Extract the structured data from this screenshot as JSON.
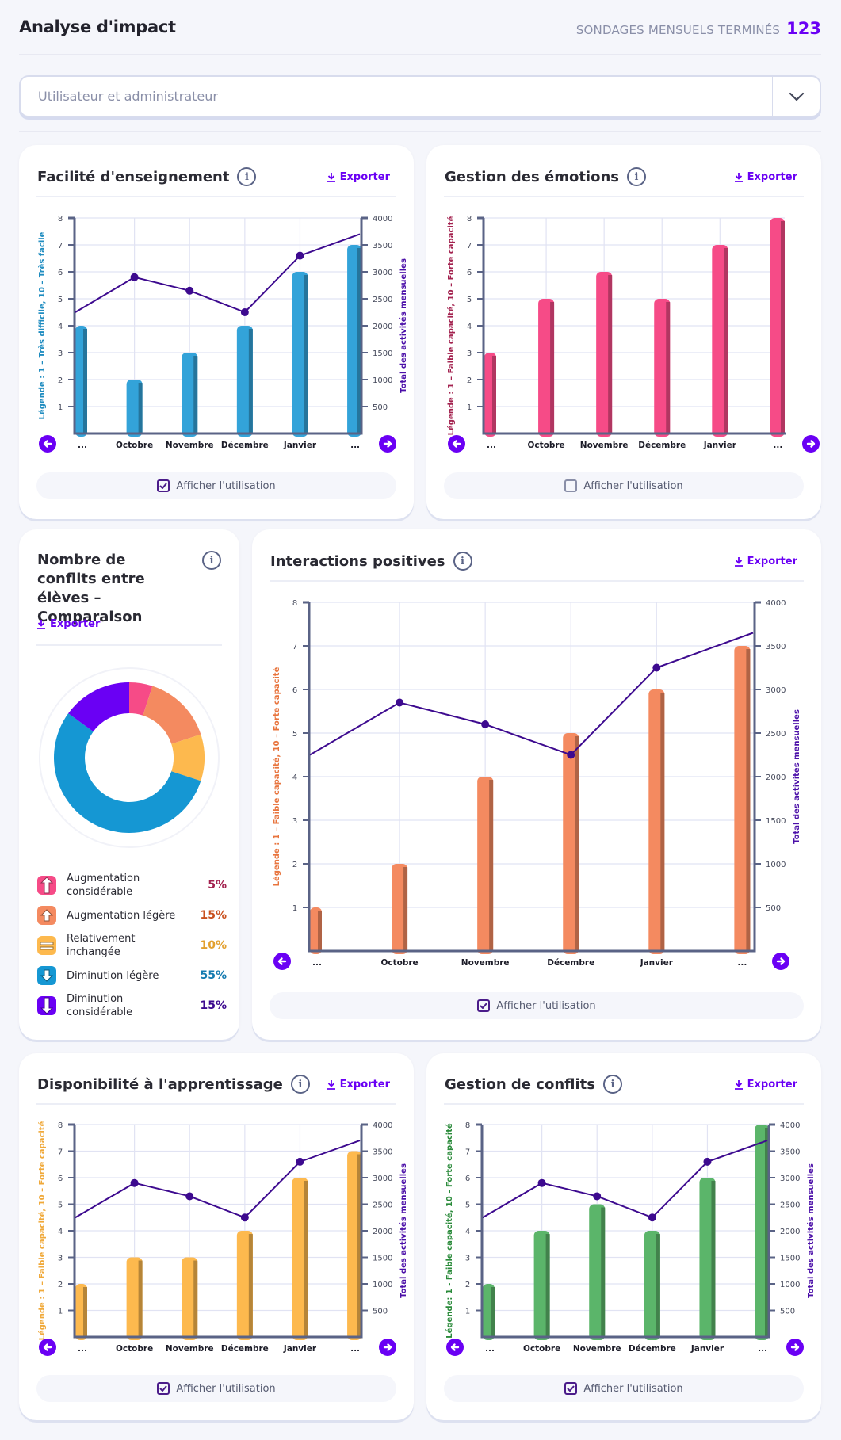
{
  "header": {
    "title": "Analyse d'impact",
    "stat_label": "SONDAGES MENSUELS TERMINÉS",
    "stat_value": "123"
  },
  "filter": {
    "value": "Utilisateur et administrateur"
  },
  "common": {
    "export_label": "Exporter",
    "usage_label": "Afficher l'utilisation",
    "prev_icon": "arrow-left-icon",
    "next_icon": "arrow-right-icon",
    "info_icon": "info-icon"
  },
  "colors": {
    "accent": "#6a00f4",
    "line": "#3d0a8f",
    "teaching": "#33a3d9",
    "emotions": "#f64b87",
    "interactions": "#f48a60",
    "readiness": "#fdb94e",
    "conflicts": "#5bb56a"
  },
  "chart_data": [
    {
      "id": "teaching",
      "type": "bar",
      "title": "Facilité d'enseignement",
      "categories": [
        "...",
        "Octobre",
        "Novembre",
        "Décembre",
        "Janvier",
        "..."
      ],
      "series": [
        {
          "name": "Score",
          "values": [
            4,
            2,
            3,
            4,
            6,
            7
          ],
          "color": "#33a3d9"
        },
        {
          "name": "Total des activités mensuelles",
          "type": "line",
          "axis": "right",
          "values": [
            2250,
            2900,
            2650,
            2250,
            3300,
            3700
          ],
          "color": "#3d0a8f"
        }
      ],
      "ylabel": "Légende : 1 – Très difficile, 10 – Très facile",
      "ylabel_color": "#1f8cc0",
      "y2label": "Total des activités mensuelles",
      "ylim": [
        0,
        8
      ],
      "yticks": [
        1,
        2,
        3,
        4,
        5,
        6,
        7,
        8
      ],
      "y2lim": [
        0,
        4000
      ],
      "y2ticks": [
        500,
        1000,
        1500,
        2000,
        2500,
        3000,
        3500,
        4000
      ],
      "grid": true,
      "show_usage": true
    },
    {
      "id": "emotions",
      "type": "bar",
      "title": "Gestion des émotions",
      "categories": [
        "...",
        "Octobre",
        "Novembre",
        "Décembre",
        "Janvier",
        "..."
      ],
      "series": [
        {
          "name": "Score",
          "values": [
            3,
            5,
            6,
            5,
            7,
            8
          ],
          "color": "#f64b87"
        }
      ],
      "ylabel": "Légende : 1 – Faible capacité, 10 – Forte capacité",
      "ylabel_color": "#a3224f",
      "ylim": [
        0,
        8
      ],
      "yticks": [
        1,
        2,
        3,
        4,
        5,
        6,
        7,
        8
      ],
      "grid": true,
      "show_usage": false
    },
    {
      "id": "conflicts-comparison",
      "type": "pie",
      "title": "Nombre de conflits entre élèves – Comparaison",
      "donut": true,
      "slices": [
        {
          "label": "Augmentation considérable",
          "value": 5,
          "display": "5%",
          "color": "#f64b87",
          "text_color": "#a3224f",
          "icon": "arrow-up-big-icon"
        },
        {
          "label": "Augmentation légère",
          "value": 15,
          "display": "15%",
          "color": "#f48a60",
          "text_color": "#c9501e",
          "icon": "arrow-up-small-icon"
        },
        {
          "label": "Relativement inchangée",
          "value": 10,
          "display": "10%",
          "color": "#fdb94e",
          "text_color": "#e2a02f",
          "icon": "equal-icon"
        },
        {
          "label": "Diminution légère",
          "value": 55,
          "display": "55%",
          "color": "#1597d3",
          "text_color": "#157bb0",
          "icon": "arrow-down-small-icon"
        },
        {
          "label": "Diminution considérable",
          "value": 15,
          "display": "15%",
          "color": "#6a00f4",
          "text_color": "#3d0a8f",
          "icon": "arrow-down-big-icon"
        }
      ]
    },
    {
      "id": "interactions",
      "type": "bar",
      "title": "Interactions positives",
      "categories": [
        "...",
        "Octobre",
        "Novembre",
        "Décembre",
        "Janvier",
        "..."
      ],
      "series": [
        {
          "name": "Score",
          "values": [
            1,
            2,
            4,
            5,
            6,
            7
          ],
          "color": "#f48a60"
        },
        {
          "name": "Total des activités mensuelles",
          "type": "line",
          "axis": "right",
          "values": [
            2250,
            2850,
            2600,
            2250,
            3250,
            3650
          ],
          "color": "#3d0a8f"
        }
      ],
      "ylabel": "Légende : 1 – Faible capacité, 10 – Forte capacité",
      "ylabel_color": "#e8743d",
      "y2label": "Total des activités mensuelles",
      "ylim": [
        0,
        8
      ],
      "yticks": [
        1,
        2,
        3,
        4,
        5,
        6,
        7,
        8
      ],
      "y2lim": [
        0,
        4000
      ],
      "y2ticks": [
        500,
        1000,
        1500,
        2000,
        2500,
        3000,
        3500,
        4000
      ],
      "grid": true,
      "show_usage": true
    },
    {
      "id": "readiness",
      "type": "bar",
      "title": "Disponibilité à l'apprentissage",
      "categories": [
        "...",
        "Octobre",
        "Novembre",
        "Décembre",
        "Janvier",
        "..."
      ],
      "series": [
        {
          "name": "Score",
          "values": [
            2,
            3,
            3,
            4,
            6,
            7
          ],
          "color": "#fdb94e"
        },
        {
          "name": "Total des activités mensuelles",
          "type": "line",
          "axis": "right",
          "values": [
            2250,
            2900,
            2650,
            2250,
            3300,
            3700
          ],
          "color": "#3d0a8f"
        }
      ],
      "ylabel": "Légende : 1 – Faible capacité, 10 – Forte capacité",
      "ylabel_color": "#f0a93a",
      "y2label": "Total des activités mensuelles",
      "ylim": [
        0,
        8
      ],
      "yticks": [
        1,
        2,
        3,
        4,
        5,
        6,
        7,
        8
      ],
      "y2lim": [
        0,
        4000
      ],
      "y2ticks": [
        500,
        1000,
        1500,
        2000,
        2500,
        3000,
        3500,
        4000
      ],
      "grid": true,
      "show_usage": true
    },
    {
      "id": "conflicts",
      "type": "bar",
      "title": "Gestion de conflits",
      "categories": [
        "...",
        "Octobre",
        "Novembre",
        "Décembre",
        "Janvier",
        "..."
      ],
      "series": [
        {
          "name": "Score",
          "values": [
            2,
            4,
            5,
            4,
            6,
            8
          ],
          "color": "#5bb56a"
        },
        {
          "name": "Total des activités mensuelles",
          "type": "line",
          "axis": "right",
          "values": [
            2250,
            2900,
            2650,
            2250,
            3300,
            3700
          ],
          "color": "#3d0a8f"
        }
      ],
      "ylabel": "Légende: 1 - Faible capacité, 10 - Forte capacité",
      "ylabel_color": "#2a8a3a",
      "y2label": "Total des activités mensuelles",
      "ylim": [
        0,
        8
      ],
      "yticks": [
        1,
        2,
        3,
        4,
        5,
        6,
        7,
        8
      ],
      "y2lim": [
        0,
        4000
      ],
      "y2ticks": [
        500,
        1000,
        1500,
        2000,
        2500,
        3000,
        3500,
        4000
      ],
      "grid": true,
      "show_usage": true
    }
  ]
}
